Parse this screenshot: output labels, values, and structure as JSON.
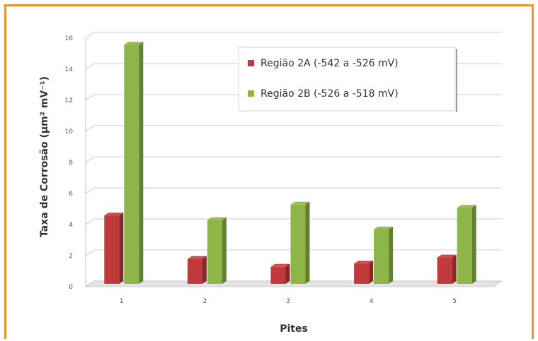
{
  "chart_data": {
    "type": "bar",
    "style": "3d-clustered-column",
    "categories": [
      "1",
      "2",
      "3",
      "4",
      "5"
    ],
    "series": [
      {
        "name": "Região 2A (-542 a -526 mV)",
        "color": "#c0393b",
        "values": [
          4.4,
          1.6,
          1.1,
          1.3,
          1.7
        ]
      },
      {
        "name": "Região 2B (-526 a -518 mV)",
        "color": "#8db548",
        "values": [
          15.4,
          4.1,
          5.1,
          3.5,
          4.9
        ]
      }
    ],
    "xlabel": "Pites",
    "ylabel": "Taxa de Corrosão (μm² mV⁻¹)",
    "ylim": [
      0,
      16
    ],
    "yticks": [
      "0",
      "2",
      "4",
      "6",
      "8",
      "10",
      "12",
      "14",
      "16"
    ],
    "grid": true,
    "legend_position": "top-right"
  },
  "colors": {
    "frame_border": "#e8962b"
  }
}
